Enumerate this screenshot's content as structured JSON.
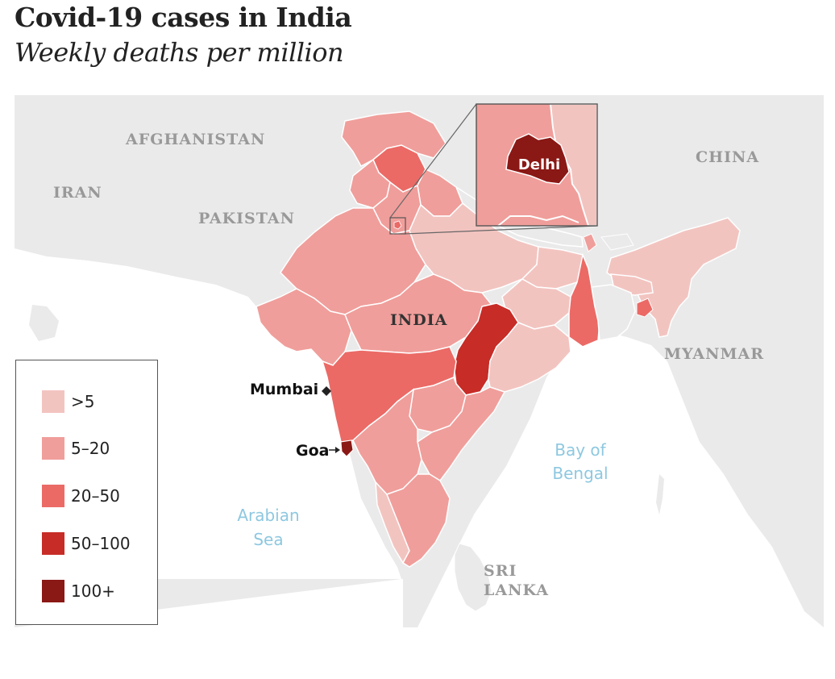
{
  "title": "Covid-19 cases in India",
  "subtitle": "Weekly deaths per million",
  "colors": {
    "background": "#eaeaea",
    "sea": "#ffffff",
    "border": "#ffffff",
    "c1": "#f2c4c0",
    "c2": "#f09e9b",
    "c3": "#eb6a66",
    "c4": "#c72c27",
    "c5": "#8a1815"
  },
  "labels": {
    "countries": {
      "afghanistan": "AFGHANISTAN",
      "iran": "IRAN",
      "pakistan": "PAKISTAN",
      "china": "CHINA",
      "india": "INDIA",
      "myanmar": "MYANMAR",
      "sri": "SRI",
      "lanka": "LANKA"
    },
    "water": {
      "bay1": "Bay of",
      "bay2": "Bengal",
      "arabian1": "Arabian",
      "arabian2": "Sea"
    },
    "cities": {
      "mumbai": "Mumbai",
      "goa": "Goa",
      "delhi": "Delhi"
    }
  },
  "legend": [
    {
      "label": ">5",
      "color": "#f2c4c0"
    },
    {
      "label": "5–20",
      "color": "#f09e9b"
    },
    {
      "label": "20–50",
      "color": "#eb6a66"
    },
    {
      "label": "50–100",
      "color": "#c72c27"
    },
    {
      "label": "100+",
      "color": "#8a1815"
    }
  ]
}
